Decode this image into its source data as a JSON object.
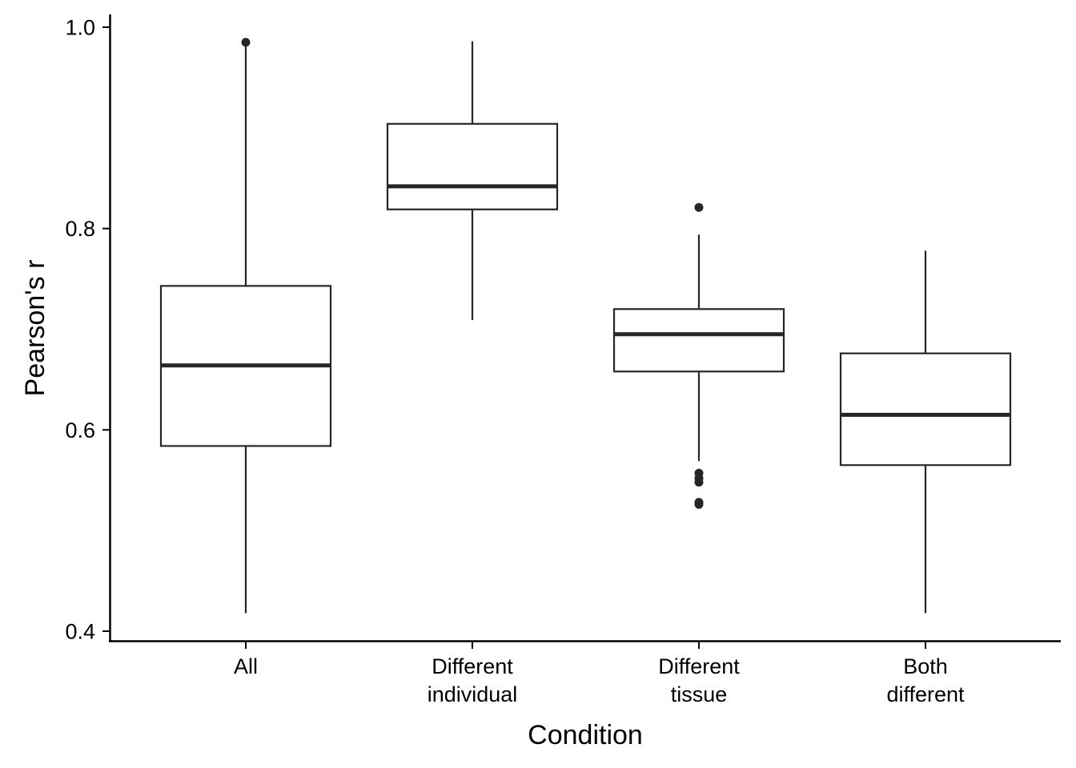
{
  "chart_data": {
    "type": "boxplot",
    "title": "",
    "xlabel": "Condition",
    "ylabel": "Pearson's r",
    "ylim": [
      0.4,
      1.0
    ],
    "yticks": [
      "0.4",
      "0.6",
      "0.8",
      "1.0"
    ],
    "tick_values": [
      0.4,
      0.6,
      0.8,
      1.0
    ],
    "grid": false,
    "legend": "none",
    "categories": [
      [
        "All"
      ],
      [
        "Different",
        "individual"
      ],
      [
        "Different",
        "tissue"
      ],
      [
        "Both",
        "different"
      ]
    ],
    "boxes": [
      {
        "whisker_low": 0.418,
        "q1": 0.584,
        "median": 0.664,
        "q3": 0.743,
        "whisker_high": 0.985,
        "outliers": [
          0.985
        ]
      },
      {
        "whisker_low": 0.709,
        "q1": 0.819,
        "median": 0.842,
        "q3": 0.904,
        "whisker_high": 0.986,
        "outliers": []
      },
      {
        "whisker_low": 0.569,
        "q1": 0.658,
        "median": 0.695,
        "q3": 0.72,
        "whisker_high": 0.794,
        "outliers": [
          0.821,
          0.557,
          0.552,
          0.548,
          0.528,
          0.526
        ]
      },
      {
        "whisker_low": 0.418,
        "q1": 0.565,
        "median": 0.615,
        "q3": 0.676,
        "whisker_high": 0.778,
        "outliers": []
      }
    ],
    "colors": {
      "box_fill": "#ffffff",
      "box_stroke": "#262626",
      "axis": "#000000"
    }
  }
}
